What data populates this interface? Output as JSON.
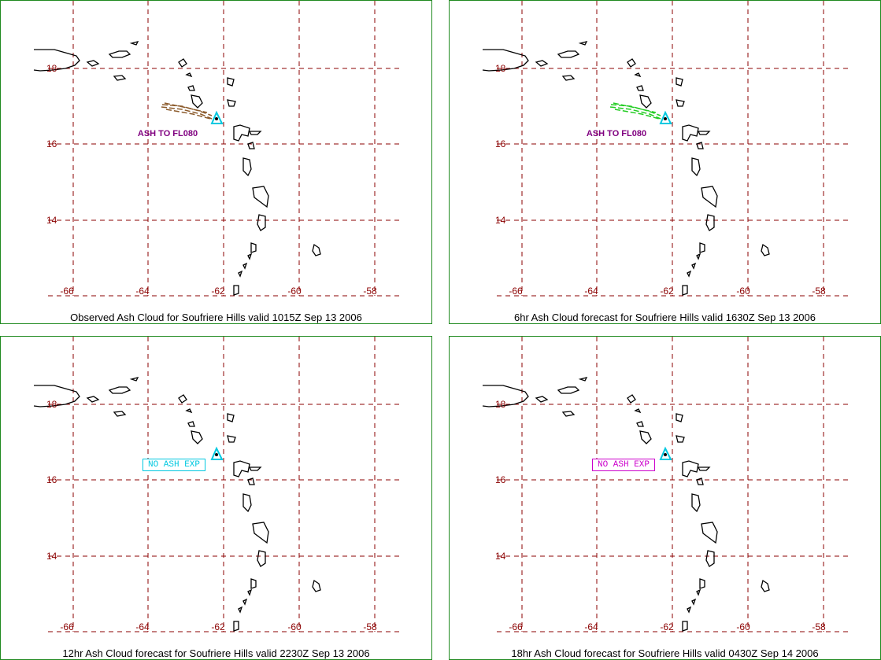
{
  "axes": {
    "lon_ticks": [
      "-66",
      "-64",
      "-62",
      "-60",
      "-58"
    ],
    "lat_ticks": [
      "18",
      "16",
      "14"
    ]
  },
  "colors": {
    "grid": "#8b0000",
    "frame": "#1f8a1f",
    "volcano": "#00c8e0"
  },
  "panels": [
    {
      "caption": "Observed Ash Cloud for Soufriere  Hills valid 1015Z Sep 13 2006",
      "annotation": "ASH TO FL080",
      "annotation_style": "text",
      "annotation_color": "#800080",
      "cloud_color": "#8b5a2b",
      "has_cloud": true
    },
    {
      "caption": "6hr Ash Cloud forecast for Soufriere  Hills valid 1630Z Sep 13 2006",
      "annotation": "ASH TO FL080",
      "annotation_style": "text",
      "annotation_color": "#800080",
      "cloud_color": "#22cc22",
      "has_cloud": true
    },
    {
      "caption": "12hr Ash Cloud forecast for Soufriere  Hills valid 2230Z Sep 13 2006",
      "annotation": "NO ASH EXP",
      "annotation_style": "box",
      "annotation_color": "#00c8e0",
      "cloud_color": "",
      "has_cloud": false
    },
    {
      "caption": "18hr Ash Cloud forecast for Soufriere  Hills valid 0430Z Sep 14 2006",
      "annotation": "NO ASH EXP",
      "annotation_style": "box",
      "annotation_color": "#cc00cc",
      "cloud_color": "",
      "has_cloud": false
    }
  ]
}
